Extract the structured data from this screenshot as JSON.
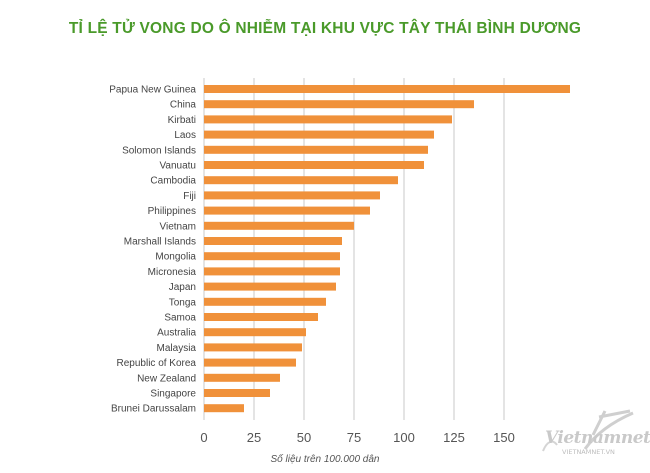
{
  "chart_data": {
    "type": "bar",
    "orientation": "horizontal",
    "title": "TỈ LỆ TỬ VONG DO Ô NHIỄM TẠI KHU VỰC TÂY THÁI BÌNH DƯƠNG",
    "categories": [
      "Papua New Guinea",
      "China",
      "Kirbati",
      "Laos",
      "Solomon Islands",
      "Vanuatu",
      "Cambodia",
      "Fiji",
      "Philippines",
      "Vietnam",
      "Marshall Islands",
      "Mongolia",
      "Micronesia",
      "Japan",
      "Tonga",
      "Samoa",
      "Australia",
      "Malaysia",
      "Republic of Korea",
      "New Zealand",
      "Singapore",
      "Brunei Darussalam"
    ],
    "values": [
      183,
      135,
      124,
      115,
      112,
      110,
      97,
      88,
      83,
      75,
      69,
      68,
      68,
      66,
      61,
      57,
      51,
      49,
      46,
      38,
      33,
      20
    ],
    "xlim": [
      0,
      175
    ],
    "xticks": [
      "0",
      "25",
      "50",
      "75",
      "100",
      "125",
      "150"
    ],
    "grid": true,
    "bar_color": "#f0913a",
    "note": "Số liệu trên 100.000 dân"
  },
  "watermark": {
    "brand": "Vietnamnet",
    "site": "VIETNAMNET.VN"
  }
}
